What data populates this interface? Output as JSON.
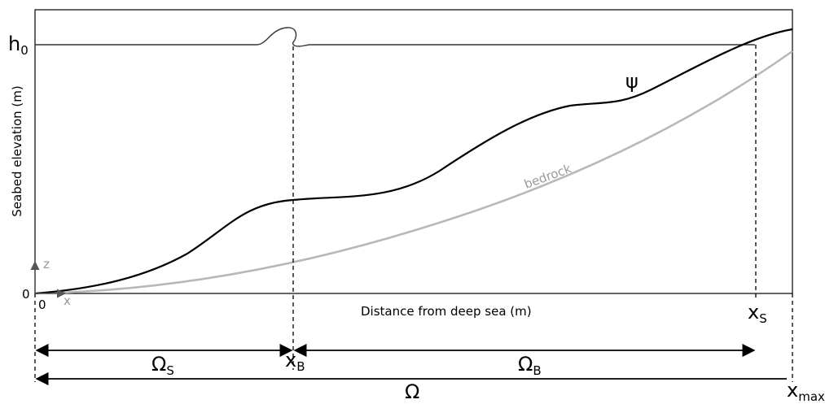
{
  "axes": {
    "y_label": "Seabed elevation (m)",
    "x_label": "Distance from deep sea (m)",
    "origin_label": "0",
    "x_origin_label": "0",
    "h0_main": "h",
    "h0_sub": "0",
    "z_axis_label": "z",
    "x_axis_label": "x"
  },
  "curves": {
    "psi_label": "ψ",
    "bedrock_label": "bedrock"
  },
  "markers": {
    "xs_main": "x",
    "xs_sub": "S",
    "xb_main": "x",
    "xb_sub": "B",
    "xmax_main": "x",
    "xmax_sub": "max"
  },
  "domains": {
    "omega_s_main": "Ω",
    "omega_s_sub": "S",
    "omega_b_main": "Ω",
    "omega_b_sub": "B",
    "omega_main": "Ω"
  },
  "colors": {
    "profile": "#000000",
    "bedrock": "#b8b8b8",
    "frame": "#000000"
  }
}
